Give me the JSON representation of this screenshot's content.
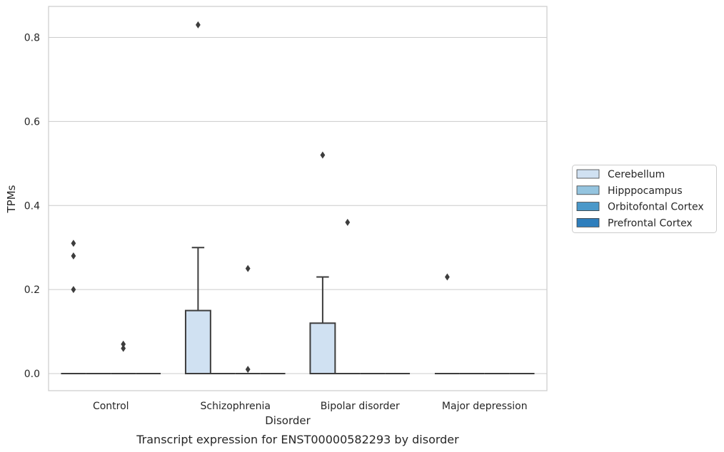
{
  "chart_data": {
    "type": "box",
    "caption": "Transcript expression for ENST00000582293 by disorder",
    "xlabel": "Disorder",
    "ylabel": "TPMs",
    "ylim": [
      -0.04,
      0.873
    ],
    "yticks": [
      "0.0",
      "0.2",
      "0.4",
      "0.6",
      "0.8"
    ],
    "ytick_values": [
      0.0,
      0.2,
      0.4,
      0.6,
      0.8
    ],
    "grid": true,
    "legend_position": "right",
    "categories": [
      "Control",
      "Schizophrenia",
      "Bipolar disorder",
      "Major depression"
    ],
    "series": [
      {
        "name": "Cerebellum",
        "color": "#d0e1f2",
        "boxes": [
          {
            "q1": 0,
            "median": 0,
            "q3": 0,
            "whisker_low": 0,
            "whisker_high": 0,
            "outliers": [
              0.31,
              0.28,
              0.2
            ]
          },
          {
            "q1": 0,
            "median": 0,
            "q3": 0.15,
            "whisker_low": 0,
            "whisker_high": 0.3,
            "outliers": [
              0.83
            ]
          },
          {
            "q1": 0,
            "median": 0,
            "q3": 0.12,
            "whisker_low": 0,
            "whisker_high": 0.23,
            "outliers": [
              0.52
            ]
          },
          {
            "q1": 0,
            "median": 0,
            "q3": 0,
            "whisker_low": 0,
            "whisker_high": 0,
            "outliers": [
              0.23
            ]
          }
        ]
      },
      {
        "name": "Hipppocampus",
        "color": "#94c4df",
        "boxes": [
          {
            "q1": 0,
            "median": 0,
            "q3": 0,
            "whisker_low": 0,
            "whisker_high": 0,
            "outliers": []
          },
          {
            "q1": 0,
            "median": 0,
            "q3": 0,
            "whisker_low": 0,
            "whisker_high": 0,
            "outliers": []
          },
          {
            "q1": 0,
            "median": 0,
            "q3": 0,
            "whisker_low": 0,
            "whisker_high": 0,
            "outliers": [
              0.36
            ]
          },
          {
            "q1": 0,
            "median": 0,
            "q3": 0,
            "whisker_low": 0,
            "whisker_high": 0,
            "outliers": []
          }
        ]
      },
      {
        "name": "Orbitofontal Cortex",
        "color": "#4a98c9",
        "boxes": [
          {
            "q1": 0,
            "median": 0,
            "q3": 0,
            "whisker_low": 0,
            "whisker_high": 0,
            "outliers": [
              0.07,
              0.06
            ]
          },
          {
            "q1": 0,
            "median": 0,
            "q3": 0,
            "whisker_low": 0,
            "whisker_high": 0,
            "outliers": [
              0.25,
              0.01
            ]
          },
          {
            "q1": 0,
            "median": 0,
            "q3": 0,
            "whisker_low": 0,
            "whisker_high": 0,
            "outliers": []
          },
          {
            "q1": 0,
            "median": 0,
            "q3": 0,
            "whisker_low": 0,
            "whisker_high": 0,
            "outliers": []
          }
        ]
      },
      {
        "name": "Prefrontal Cortex",
        "color": "#2e7ebc",
        "boxes": [
          {
            "q1": 0,
            "median": 0,
            "q3": 0,
            "whisker_low": 0,
            "whisker_high": 0,
            "outliers": []
          },
          {
            "q1": 0,
            "median": 0,
            "q3": 0,
            "whisker_low": 0,
            "whisker_high": 0,
            "outliers": []
          },
          {
            "q1": 0,
            "median": 0,
            "q3": 0,
            "whisker_low": 0,
            "whisker_high": 0,
            "outliers": []
          },
          {
            "q1": 0,
            "median": 0,
            "q3": 0,
            "whisker_low": 0,
            "whisker_high": 0,
            "outliers": []
          }
        ]
      }
    ]
  }
}
